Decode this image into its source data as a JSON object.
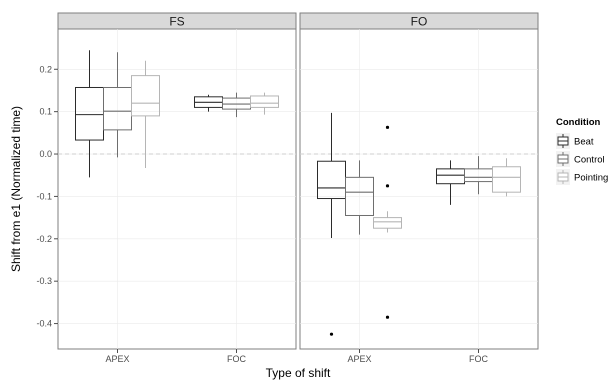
{
  "chart_data": {
    "type": "boxplot",
    "xlabel": "Type of shift",
    "ylabel": "Shift from e1 (Normalized time)",
    "ylim": [
      -0.46,
      0.295
    ],
    "yticks": [
      0.2,
      0.1,
      0.0,
      -0.1,
      -0.2,
      -0.3,
      -0.4
    ],
    "ytick_labels": [
      "0.2",
      "0.1",
      "0.0",
      "-0.1",
      "-0.2",
      "-0.3",
      "-0.4"
    ],
    "reference_line": 0.0,
    "categories": [
      "APEX",
      "FOC"
    ],
    "legend": {
      "title": "Condition",
      "placement": "right",
      "entries": [
        "Beat",
        "Control",
        "Pointing"
      ]
    },
    "series_colors": {
      "Beat": "#2b2b2b",
      "Control": "#6e6e6e",
      "Pointing": "#b5b5b5"
    },
    "panels": [
      {
        "title": "FS",
        "boxes": [
          {
            "category": "APEX",
            "condition": "Beat",
            "whisker_low": -0.055,
            "q1": 0.033,
            "median": 0.093,
            "q3": 0.157,
            "whisker_high": 0.245,
            "outliers": []
          },
          {
            "category": "APEX",
            "condition": "Control",
            "whisker_low": -0.008,
            "q1": 0.057,
            "median": 0.101,
            "q3": 0.157,
            "whisker_high": 0.24,
            "outliers": []
          },
          {
            "category": "APEX",
            "condition": "Pointing",
            "whisker_low": -0.033,
            "q1": 0.09,
            "median": 0.12,
            "q3": 0.185,
            "whisker_high": 0.22,
            "outliers": []
          },
          {
            "category": "FOC",
            "condition": "Beat",
            "whisker_low": 0.1,
            "q1": 0.11,
            "median": 0.122,
            "q3": 0.135,
            "whisker_high": 0.14,
            "outliers": []
          },
          {
            "category": "FOC",
            "condition": "Control",
            "whisker_low": 0.087,
            "q1": 0.106,
            "median": 0.118,
            "q3": 0.132,
            "whisker_high": 0.145,
            "outliers": []
          },
          {
            "category": "FOC",
            "condition": "Pointing",
            "whisker_low": 0.093,
            "q1": 0.11,
            "median": 0.12,
            "q3": 0.137,
            "whisker_high": 0.145,
            "outliers": []
          }
        ]
      },
      {
        "title": "FO",
        "boxes": [
          {
            "category": "APEX",
            "condition": "Beat",
            "whisker_low": -0.198,
            "q1": -0.105,
            "median": -0.08,
            "q3": -0.017,
            "whisker_high": 0.097,
            "outliers": [
              -0.425
            ]
          },
          {
            "category": "APEX",
            "condition": "Control",
            "whisker_low": -0.19,
            "q1": -0.145,
            "median": -0.09,
            "q3": -0.055,
            "whisker_high": -0.015,
            "outliers": []
          },
          {
            "category": "APEX",
            "condition": "Pointing",
            "whisker_low": -0.185,
            "q1": -0.175,
            "median": -0.16,
            "q3": -0.15,
            "whisker_high": -0.135,
            "outliers": [
              0.063,
              -0.075,
              -0.385
            ]
          },
          {
            "category": "FOC",
            "condition": "Beat",
            "whisker_low": -0.12,
            "q1": -0.07,
            "median": -0.05,
            "q3": -0.035,
            "whisker_high": -0.015,
            "outliers": []
          },
          {
            "category": "FOC",
            "condition": "Control",
            "whisker_low": -0.095,
            "q1": -0.065,
            "median": -0.055,
            "q3": -0.035,
            "whisker_high": -0.005,
            "outliers": []
          },
          {
            "category": "FOC",
            "condition": "Pointing",
            "whisker_low": -0.1,
            "q1": -0.09,
            "median": -0.055,
            "q3": -0.03,
            "whisker_high": -0.01,
            "outliers": []
          }
        ]
      }
    ]
  }
}
